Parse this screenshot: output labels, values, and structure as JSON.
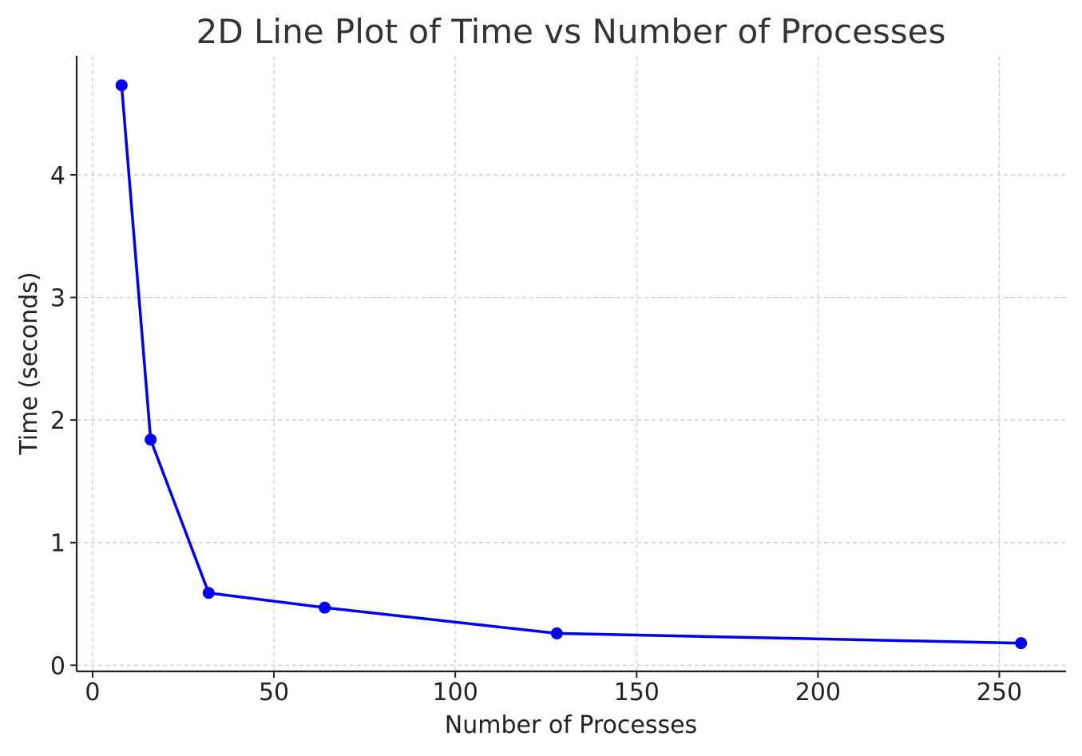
{
  "chart_data": {
    "type": "line",
    "title": "2D Line Plot of Time vs Number of Processes",
    "xlabel": "Number of Processes",
    "ylabel": "Time (seconds)",
    "x": [
      8,
      16,
      32,
      64,
      128,
      256
    ],
    "series": [
      {
        "values": [
          4.73,
          1.84,
          0.59,
          0.47,
          0.26,
          0.18
        ]
      }
    ],
    "xlim": [
      -4.4,
      268.4
    ],
    "ylim": [
      -0.05,
      4.97
    ],
    "x_ticks": [
      0,
      50,
      100,
      150,
      200,
      250
    ],
    "x_tick_labels": [
      "0",
      "50",
      "100",
      "150",
      "200",
      "250"
    ],
    "y_ticks": [
      0,
      1,
      2,
      3,
      4
    ],
    "y_tick_labels": [
      "0",
      "1",
      "2",
      "3",
      "4"
    ],
    "grid": true,
    "colors": {
      "line": "#0000ee",
      "marker": "#0000ee"
    }
  }
}
